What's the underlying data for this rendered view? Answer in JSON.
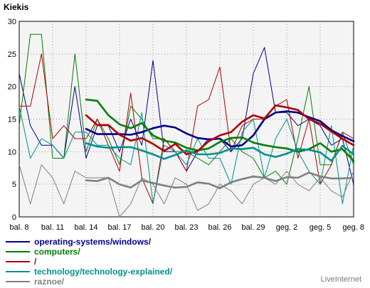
{
  "chart_data": {
    "type": "line",
    "title": "Kiekis",
    "ylim": [
      0,
      30
    ],
    "yticks": [
      0,
      5,
      10,
      15,
      20,
      25,
      30
    ],
    "xlim": [
      8,
      38
    ],
    "xticks": [
      {
        "x": 8,
        "label": "bal. 8"
      },
      {
        "x": 11,
        "label": "bal. 11"
      },
      {
        "x": 14,
        "label": "bal. 14"
      },
      {
        "x": 17,
        "label": "bal. 17"
      },
      {
        "x": 20,
        "label": "bal. 20"
      },
      {
        "x": 23,
        "label": "bal. 23"
      },
      {
        "x": 26,
        "label": "bal. 26"
      },
      {
        "x": 29,
        "label": "bal. 29"
      },
      {
        "x": 32,
        "label": "geg. 2"
      },
      {
        "x": 35,
        "label": "geg. 5"
      },
      {
        "x": 38,
        "label": "geg. 8"
      }
    ],
    "grid": true,
    "series": [
      {
        "name": "operating-systems/windows/",
        "color": "#00008b",
        "daily": [
          [
            8,
            22
          ],
          [
            9,
            14
          ],
          [
            10,
            11
          ],
          [
            11,
            11
          ],
          [
            12,
            9
          ],
          [
            13,
            20
          ],
          [
            14,
            9
          ],
          [
            15,
            14
          ],
          [
            16,
            14
          ],
          [
            17,
            10
          ],
          [
            18,
            15
          ],
          [
            19,
            11
          ],
          [
            20,
            24
          ],
          [
            21,
            10
          ],
          [
            22,
            10
          ],
          [
            23,
            7
          ],
          [
            24,
            10
          ],
          [
            25,
            12
          ],
          [
            26,
            12
          ],
          [
            27,
            10
          ],
          [
            28,
            12
          ],
          [
            29,
            22
          ],
          [
            30,
            26
          ],
          [
            31,
            16
          ],
          [
            32,
            16
          ],
          [
            33,
            14
          ],
          [
            34,
            15
          ],
          [
            35,
            14
          ],
          [
            36,
            11
          ],
          [
            37,
            12
          ],
          [
            38,
            5
          ]
        ],
        "average": [
          [
            14,
            13.5
          ],
          [
            15,
            12.7
          ],
          [
            16,
            12.7
          ],
          [
            17,
            12.7
          ],
          [
            18,
            12.6
          ],
          [
            19,
            13
          ],
          [
            20,
            13.6
          ],
          [
            21,
            14
          ],
          [
            22,
            13.7
          ],
          [
            23,
            12.8
          ],
          [
            24,
            12.1
          ],
          [
            25,
            11.9
          ],
          [
            26,
            12
          ],
          [
            27,
            10.8
          ],
          [
            28,
            11
          ],
          [
            29,
            12.5
          ],
          [
            30,
            15
          ],
          [
            31,
            16
          ],
          [
            32,
            16.2
          ],
          [
            33,
            16
          ],
          [
            34,
            15.3
          ],
          [
            35,
            14.7
          ],
          [
            36,
            13.3
          ],
          [
            37,
            12.4
          ],
          [
            38,
            11.6
          ]
        ]
      },
      {
        "name": "computers/",
        "color": "#008000",
        "daily": [
          [
            8,
            14
          ],
          [
            9,
            28
          ],
          [
            10,
            28
          ],
          [
            11,
            9
          ],
          [
            12,
            9
          ],
          [
            13,
            25
          ],
          [
            14,
            10
          ],
          [
            15,
            15
          ],
          [
            16,
            12
          ],
          [
            17,
            8
          ],
          [
            18,
            17
          ],
          [
            19,
            15
          ],
          [
            20,
            12
          ],
          [
            21,
            12
          ],
          [
            22,
            10
          ],
          [
            23,
            10
          ],
          [
            24,
            9
          ],
          [
            25,
            8
          ],
          [
            26,
            10
          ],
          [
            27,
            12
          ],
          [
            28,
            10
          ],
          [
            29,
            9
          ],
          [
            30,
            6
          ],
          [
            31,
            7
          ],
          [
            32,
            5
          ],
          [
            33,
            12
          ],
          [
            34,
            20
          ],
          [
            35,
            8
          ],
          [
            36,
            8
          ],
          [
            37,
            13
          ],
          [
            38,
            8
          ]
        ],
        "average": [
          [
            14,
            18
          ],
          [
            15,
            17.8
          ],
          [
            16,
            15.6
          ],
          [
            17,
            14.2
          ],
          [
            18,
            13.6
          ],
          [
            19,
            14.4
          ],
          [
            20,
            12.5
          ],
          [
            21,
            11.7
          ],
          [
            22,
            11.4
          ],
          [
            23,
            10.6
          ],
          [
            24,
            10.2
          ],
          [
            25,
            10.5
          ],
          [
            26,
            11.5
          ],
          [
            27,
            12.1
          ],
          [
            28,
            12.2
          ],
          [
            29,
            11.4
          ],
          [
            30,
            11
          ],
          [
            31,
            10.7
          ],
          [
            32,
            10.5
          ],
          [
            33,
            10
          ],
          [
            34,
            10.4
          ],
          [
            35,
            11.3
          ],
          [
            36,
            10
          ],
          [
            37,
            10.4
          ],
          [
            38,
            8.6
          ]
        ]
      },
      {
        "name": "/",
        "color": "#b00000",
        "daily": [
          [
            8,
            17
          ],
          [
            9,
            17
          ],
          [
            10,
            25
          ],
          [
            11,
            12
          ],
          [
            12,
            14
          ],
          [
            13,
            12
          ],
          [
            14,
            12
          ],
          [
            15,
            15
          ],
          [
            16,
            11
          ],
          [
            17,
            7
          ],
          [
            18,
            19
          ],
          [
            19,
            6
          ],
          [
            20,
            2
          ],
          [
            21,
            12
          ],
          [
            22,
            10
          ],
          [
            23,
            7
          ],
          [
            24,
            17
          ],
          [
            25,
            18
          ],
          [
            26,
            23
          ],
          [
            27,
            10
          ],
          [
            28,
            14
          ],
          [
            29,
            15
          ],
          [
            30,
            15
          ],
          [
            31,
            17
          ],
          [
            32,
            18
          ],
          [
            33,
            9
          ],
          [
            34,
            15
          ],
          [
            35,
            5
          ],
          [
            36,
            8
          ],
          [
            37,
            13
          ],
          [
            38,
            12
          ]
        ],
        "average": [
          [
            14,
            15.6
          ],
          [
            15,
            14.1
          ],
          [
            16,
            14.1
          ],
          [
            17,
            12.6
          ],
          [
            18,
            11.7
          ],
          [
            19,
            12.1
          ],
          [
            20,
            11.2
          ],
          [
            21,
            10.1
          ],
          [
            22,
            11.2
          ],
          [
            23,
            9.6
          ],
          [
            24,
            10.1
          ],
          [
            25,
            11.6
          ],
          [
            26,
            12.5
          ],
          [
            27,
            13
          ],
          [
            28,
            14.6
          ],
          [
            29,
            15.6
          ],
          [
            30,
            15.1
          ],
          [
            31,
            17.1
          ],
          [
            32,
            16.8
          ],
          [
            33,
            16.4
          ],
          [
            34,
            15
          ],
          [
            35,
            14.3
          ],
          [
            36,
            13.1
          ],
          [
            37,
            12
          ],
          [
            38,
            11
          ]
        ]
      },
      {
        "name": "technology/technology-explained/",
        "color": "#009090",
        "daily": [
          [
            8,
            17
          ],
          [
            9,
            9
          ],
          [
            10,
            12
          ],
          [
            11,
            11
          ],
          [
            12,
            9
          ],
          [
            13,
            13
          ],
          [
            14,
            13
          ],
          [
            15,
            11
          ],
          [
            16,
            11
          ],
          [
            17,
            9
          ],
          [
            18,
            8
          ],
          [
            19,
            16
          ],
          [
            20,
            2
          ],
          [
            21,
            11
          ],
          [
            22,
            10
          ],
          [
            23,
            8
          ],
          [
            24,
            12
          ],
          [
            25,
            9
          ],
          [
            26,
            9
          ],
          [
            27,
            5
          ],
          [
            28,
            13
          ],
          [
            29,
            15
          ],
          [
            30,
            6
          ],
          [
            31,
            12
          ],
          [
            32,
            15
          ],
          [
            33,
            10
          ],
          [
            34,
            7
          ],
          [
            35,
            5
          ],
          [
            36,
            14
          ],
          [
            37,
            2
          ],
          [
            38,
            11
          ]
        ],
        "average": [
          [
            14,
            11.3
          ],
          [
            15,
            10.8
          ],
          [
            16,
            10.6
          ],
          [
            17,
            10.7
          ],
          [
            18,
            10.7
          ],
          [
            19,
            10.2
          ],
          [
            20,
            9.6
          ],
          [
            21,
            8.9
          ],
          [
            22,
            9.5
          ],
          [
            23,
            10.2
          ],
          [
            24,
            9.6
          ],
          [
            25,
            9.6
          ],
          [
            26,
            9.8
          ],
          [
            27,
            10.5
          ],
          [
            28,
            10.4
          ],
          [
            29,
            10.6
          ],
          [
            30,
            9.6
          ],
          [
            31,
            9.2
          ],
          [
            32,
            9.7
          ],
          [
            33,
            10.4
          ],
          [
            34,
            10.3
          ],
          [
            35,
            9.9
          ],
          [
            36,
            8.6
          ],
          [
            37,
            10.9
          ],
          [
            38,
            9.6
          ]
        ]
      },
      {
        "name": "raznoe/",
        "color": "#808080",
        "daily": [
          [
            8,
            8
          ],
          [
            9,
            2
          ],
          [
            10,
            8
          ],
          [
            11,
            6
          ],
          [
            12,
            2
          ],
          [
            13,
            7
          ],
          [
            14,
            6
          ],
          [
            15,
            6
          ],
          [
            16,
            6
          ],
          [
            17,
            0
          ],
          [
            18,
            2
          ],
          [
            19,
            6
          ],
          [
            20,
            5
          ],
          [
            21,
            2
          ],
          [
            22,
            6
          ],
          [
            23,
            5
          ],
          [
            24,
            1
          ],
          [
            25,
            2
          ],
          [
            26,
            5
          ],
          [
            27,
            4
          ],
          [
            28,
            2
          ],
          [
            29,
            5
          ],
          [
            30,
            6
          ],
          [
            31,
            5
          ],
          [
            32,
            7
          ],
          [
            33,
            5
          ],
          [
            34,
            4
          ],
          [
            35,
            6
          ],
          [
            36,
            4
          ],
          [
            37,
            3
          ],
          [
            38,
            7
          ]
        ],
        "average": [
          [
            14,
            5.6
          ],
          [
            15,
            5.5
          ],
          [
            16,
            6
          ],
          [
            17,
            5
          ],
          [
            18,
            4.5
          ],
          [
            19,
            5.6
          ],
          [
            20,
            5.2
          ],
          [
            21,
            4.8
          ],
          [
            22,
            4.5
          ],
          [
            23,
            4.6
          ],
          [
            24,
            5.3
          ],
          [
            25,
            5.1
          ],
          [
            26,
            4.4
          ],
          [
            27,
            5.3
          ],
          [
            28,
            5.8
          ],
          [
            29,
            6.2
          ],
          [
            30,
            6
          ],
          [
            31,
            5.5
          ],
          [
            32,
            6.1
          ],
          [
            33,
            6
          ],
          [
            34,
            6.8
          ],
          [
            35,
            6.2
          ],
          [
            36,
            5.9
          ],
          [
            37,
            5.9
          ],
          [
            38,
            6
          ]
        ]
      }
    ]
  },
  "brand": "LiveInternet"
}
